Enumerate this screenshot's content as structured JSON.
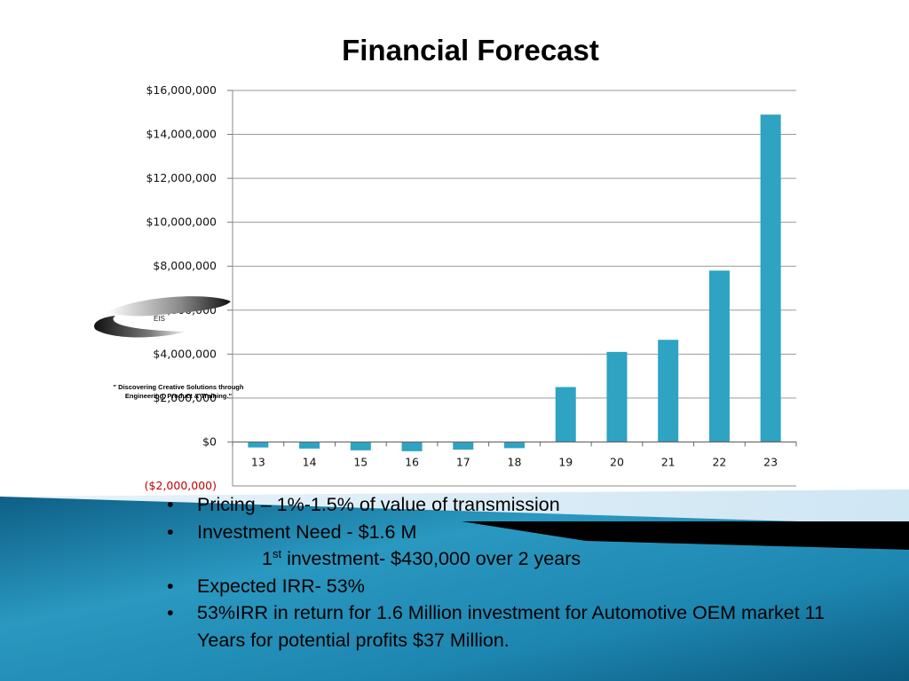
{
  "slide": {
    "title": "Financial Forecast"
  },
  "chart_data": {
    "type": "bar",
    "title": "",
    "xlabel": "",
    "ylabel": "",
    "categories": [
      "13",
      "14",
      "15",
      "16",
      "17",
      "18",
      "19",
      "20",
      "21",
      "22",
      "23"
    ],
    "values": [
      -250000,
      -300000,
      -380000,
      -420000,
      -350000,
      -280000,
      2500000,
      4100000,
      4650000,
      7800000,
      14900000
    ],
    "ylim": [
      -2000000,
      16000000
    ],
    "y_ticks": [
      16000000,
      14000000,
      12000000,
      10000000,
      8000000,
      6000000,
      4000000,
      2000000,
      0,
      -2000000
    ],
    "y_tick_labels": [
      "$16,000,000",
      "$14,000,000",
      "$12,000,000",
      "$10,000,000",
      "$8,000,000",
      "$6,000,000",
      "$4,000,000",
      "$2,000,000",
      "$0",
      "($2,000,000)"
    ],
    "grid": true,
    "bar_color": "#2ea3c2",
    "negative_label_color": "#c00000"
  },
  "logo": {
    "mark": "EIS",
    "tagline_1": "\" Discovering Creative Solutions through",
    "tagline_2": "Engineering, Product & Training.\""
  },
  "bullets": {
    "b1": "Pricing – 1%-1.5% of value of transmission",
    "b2": "Investment Need - $1.6 M",
    "b2_sub_num": "1",
    "b2_sub_sup": "st",
    "b2_sub_rest": " investment- $430,000 over 2 years",
    "b3": "Expected IRR- 53%",
    "b4": "53%IRR in return for 1.6 Million investment for Automotive OEM market 11 Years for potential profits $37 Million.",
    "bullet_char": "•"
  },
  "colors": {
    "accent_teal": "#1a7fa3",
    "dark_band": "#000000"
  }
}
